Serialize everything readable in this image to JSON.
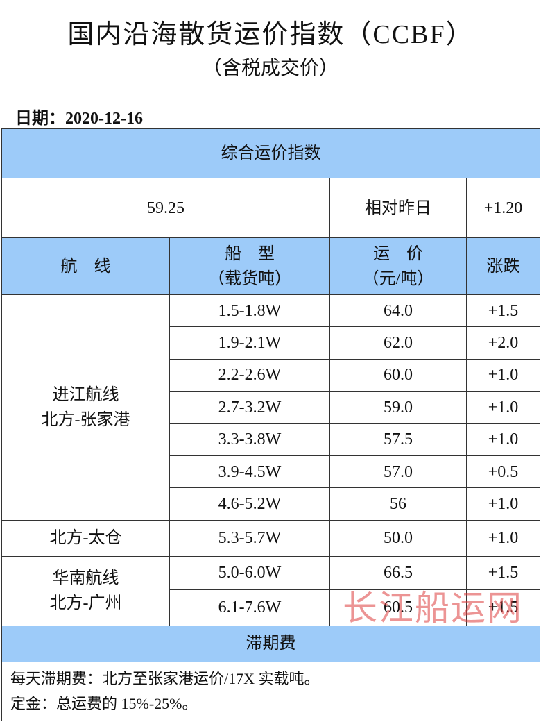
{
  "header": {
    "title": "国内沿海散货运价指数（CCBF）",
    "subtitle": "（含税成交价）",
    "date": "日期：2020-12-16"
  },
  "table": {
    "section_title": "综合运价指数",
    "index_value": "59.25",
    "compare_label": "相对昨日",
    "compare_value": "+1.20",
    "headers": [
      [
        "航　线"
      ],
      [
        "船　型",
        "（载货吨）"
      ],
      [
        "运　价",
        "（元/吨）"
      ],
      [
        "涨跌"
      ]
    ],
    "groups": [
      {
        "route": [
          "进江航线",
          "北方-张家港"
        ],
        "rows": [
          [
            "1.5-1.8W",
            "64.0",
            "+1.5"
          ],
          [
            "1.9-2.1W",
            "62.0",
            "+2.0"
          ],
          [
            "2.2-2.6W",
            "60.0",
            "+1.0"
          ],
          [
            "2.7-3.2W",
            "59.0",
            "+1.0"
          ],
          [
            "3.3-3.8W",
            "57.5",
            "+1.0"
          ],
          [
            "3.9-4.5W",
            "57.0",
            "+0.5"
          ],
          [
            "4.6-5.2W",
            "56",
            "+1.0"
          ]
        ]
      },
      {
        "route": [
          "北方-太仓"
        ],
        "rows": [
          [
            "5.3-5.7W",
            "50.0",
            "+1.0"
          ]
        ]
      },
      {
        "route": [
          "华南航线",
          "北方-广州"
        ],
        "rows": [
          [
            "5.0-6.0W",
            "66.5",
            "+1.5"
          ],
          [
            "6.1-7.6W",
            "60.5",
            "+1.5"
          ]
        ]
      }
    ],
    "demurrage_title": "滞期费",
    "notes": [
      "每天滞期费：北方至张家港运价/17X 实载吨。",
      "定金：总运费的 15%-25%。"
    ]
  },
  "watermark": "长江船运网"
}
